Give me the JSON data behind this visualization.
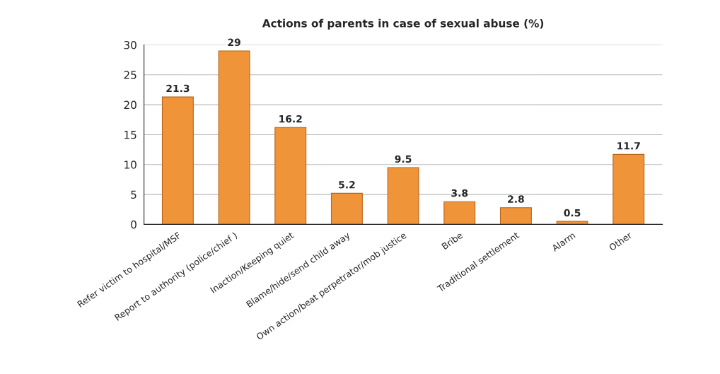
{
  "chart_data": {
    "type": "bar",
    "title": "Actions of parents in case of sexual abuse (%)",
    "categories": [
      "Refer victim to hospital/MSF",
      "Report to authority (police/chief )",
      "Inaction/Keeping quiet",
      "Blame/hide/send child away",
      "Own action/beat perpetrator/mob justice",
      "Bribe",
      "Traditional settlement",
      "Alarm",
      "Other"
    ],
    "values": [
      21.3,
      29,
      16.2,
      5.2,
      9.5,
      3.8,
      2.8,
      0.5,
      11.7
    ],
    "color": "#f0943a",
    "ylim": [
      0,
      30
    ],
    "yticks": [
      0,
      5,
      10,
      15,
      20,
      25,
      30
    ],
    "grid": "y",
    "data_labels": true,
    "legend": false
  }
}
